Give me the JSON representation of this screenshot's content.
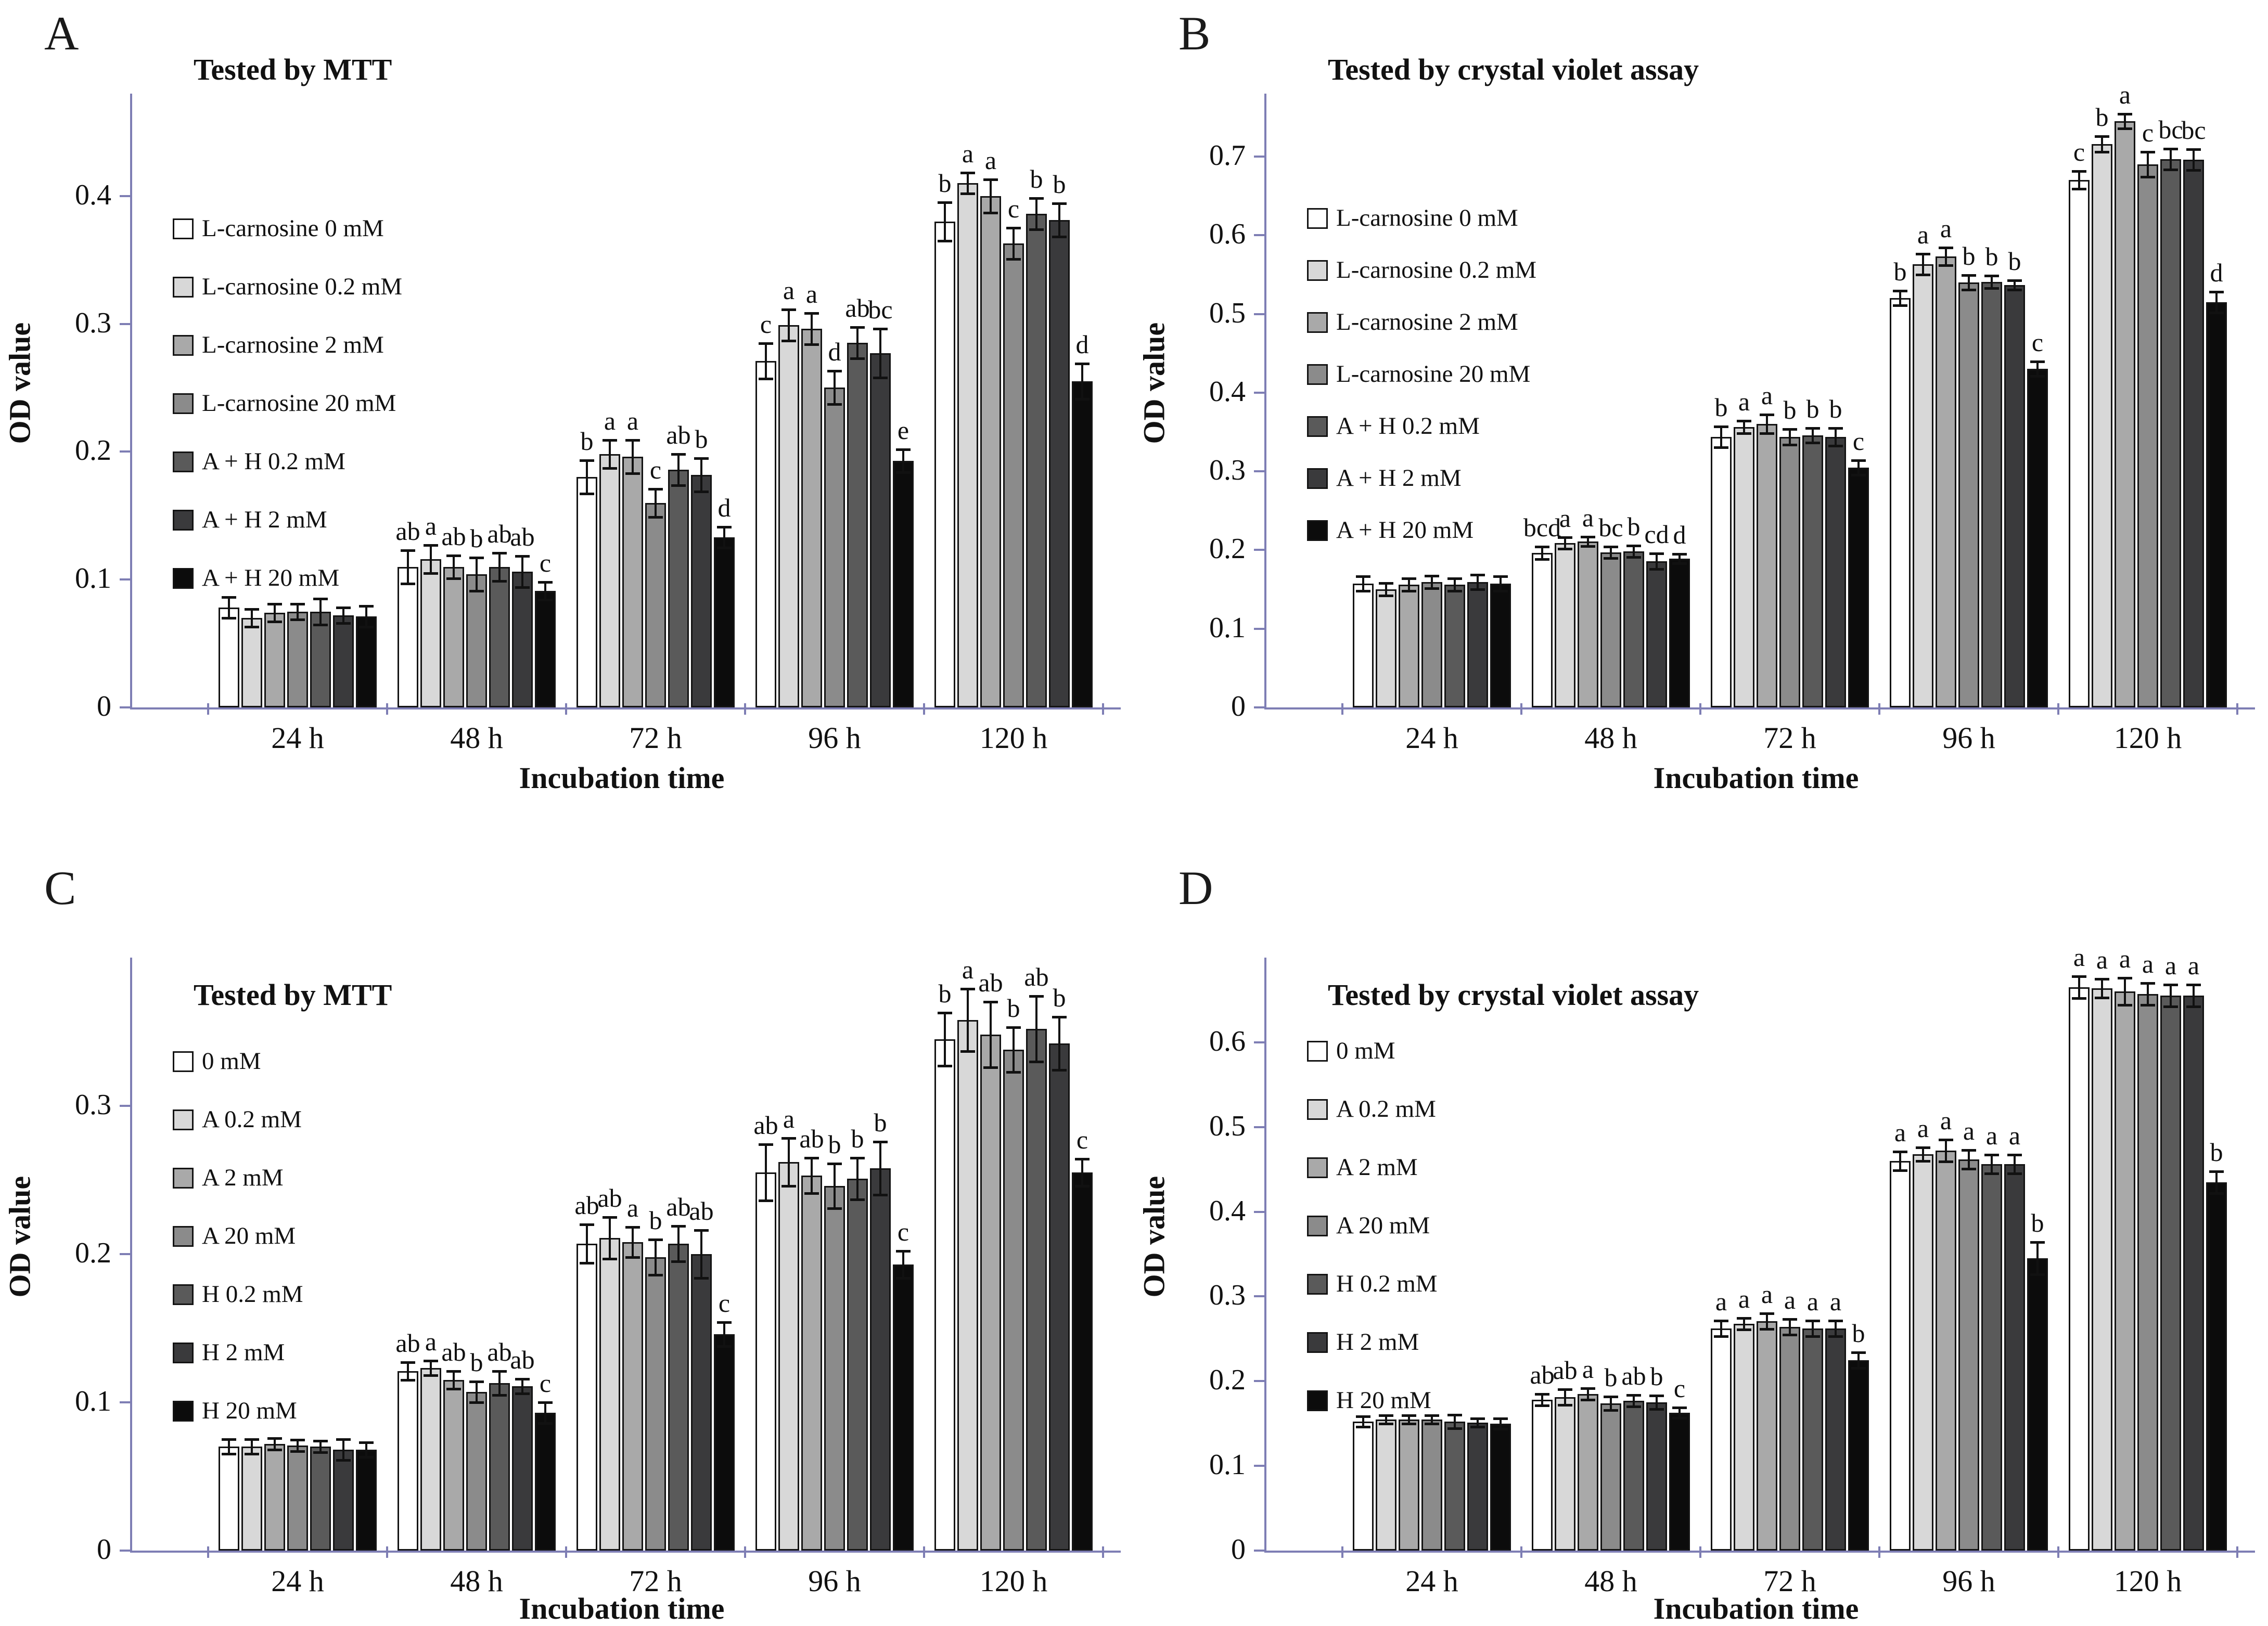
{
  "axis_color": "#7e7eb4",
  "palette": [
    "#ffffff",
    "#d8d8d8",
    "#a9a9a9",
    "#8b8b8b",
    "#5a5a5a",
    "#3a3a3c",
    "#0c0c0c"
  ],
  "chart_data": [
    {
      "panel_label": "A",
      "title": "Tested by MTT",
      "type": "bar",
      "ylabel": "OD value",
      "xlabel": "Incubation time",
      "categories": [
        "24 h",
        "48 h",
        "72 h",
        "96 h",
        "120 h"
      ],
      "ylim": [
        0,
        0.48
      ],
      "yticks": [
        0,
        0.1,
        0.2,
        0.3,
        0.4
      ],
      "legend_position": "inside-top-left",
      "series": [
        {
          "name": "L-carnosine 0 mM",
          "values": [
            0.078,
            0.11,
            0.18,
            0.271,
            0.38
          ],
          "errors": [
            0.008,
            0.013,
            0.013,
            0.014,
            0.015
          ]
        },
        {
          "name": "L-carnosine 0.2 mM",
          "values": [
            0.07,
            0.116,
            0.198,
            0.299,
            0.41
          ],
          "errors": [
            0.007,
            0.011,
            0.011,
            0.012,
            0.008
          ]
        },
        {
          "name": "L-carnosine 2 mM",
          "values": [
            0.074,
            0.11,
            0.196,
            0.296,
            0.4
          ],
          "errors": [
            0.007,
            0.009,
            0.013,
            0.012,
            0.013
          ]
        },
        {
          "name": "L-carnosine 20 mM",
          "values": [
            0.075,
            0.104,
            0.16,
            0.25,
            0.363
          ],
          "errors": [
            0.006,
            0.013,
            0.011,
            0.013,
            0.012
          ]
        },
        {
          "name": "A + H 0.2 mM",
          "values": [
            0.075,
            0.11,
            0.186,
            0.285,
            0.386
          ],
          "errors": [
            0.01,
            0.011,
            0.012,
            0.012,
            0.012
          ]
        },
        {
          "name": "A + H 2 mM",
          "values": [
            0.072,
            0.106,
            0.182,
            0.277,
            0.381
          ],
          "errors": [
            0.006,
            0.012,
            0.013,
            0.019,
            0.013
          ]
        },
        {
          "name": "A + H 20 mM",
          "values": [
            0.071,
            0.091,
            0.133,
            0.193,
            0.255
          ],
          "errors": [
            0.008,
            0.007,
            0.008,
            0.009,
            0.014
          ]
        }
      ],
      "sig_letters": [
        [
          "",
          "",
          "",
          "",
          "",
          "",
          ""
        ],
        [
          "ab",
          "a",
          "ab",
          "b",
          "ab",
          "ab",
          "c"
        ],
        [
          "b",
          "a",
          "a",
          "c",
          "ab",
          "b",
          "d"
        ],
        [
          "c",
          "a",
          "a",
          "d",
          "ab",
          "bc",
          "e"
        ],
        [
          "b",
          "a",
          "a",
          "c",
          "b",
          "b",
          "d"
        ]
      ]
    },
    {
      "panel_label": "B",
      "title": "Tested by crystal violet assay",
      "type": "bar",
      "ylabel": "OD value",
      "xlabel": "Incubation time",
      "categories": [
        "24 h",
        "48 h",
        "72 h",
        "96 h",
        "120 h"
      ],
      "ylim": [
        0,
        0.78
      ],
      "yticks": [
        0,
        0.1,
        0.2,
        0.3,
        0.4,
        0.5,
        0.6,
        0.7
      ],
      "legend_position": "inside-top-left",
      "series": [
        {
          "name": "L-carnosine 0 mM",
          "values": [
            0.157,
            0.196,
            0.344,
            0.52,
            0.67
          ],
          "errors": [
            0.009,
            0.008,
            0.013,
            0.009,
            0.011
          ]
        },
        {
          "name": "L-carnosine 0.2 mM",
          "values": [
            0.15,
            0.209,
            0.356,
            0.563,
            0.716
          ],
          "errors": [
            0.008,
            0.007,
            0.008,
            0.013,
            0.01
          ]
        },
        {
          "name": "L-carnosine 2 mM",
          "values": [
            0.156,
            0.211,
            0.36,
            0.573,
            0.745
          ],
          "errors": [
            0.008,
            0.006,
            0.012,
            0.011,
            0.009
          ]
        },
        {
          "name": "L-carnosine 20 mM",
          "values": [
            0.159,
            0.197,
            0.344,
            0.54,
            0.69
          ],
          "errors": [
            0.008,
            0.007,
            0.01,
            0.009,
            0.016
          ]
        },
        {
          "name": "A + H 0.2 mM",
          "values": [
            0.156,
            0.198,
            0.346,
            0.541,
            0.697
          ],
          "errors": [
            0.008,
            0.007,
            0.009,
            0.008,
            0.013
          ]
        },
        {
          "name": "A + H 2 mM",
          "values": [
            0.159,
            0.186,
            0.344,
            0.537,
            0.696
          ],
          "errors": [
            0.009,
            0.01,
            0.011,
            0.006,
            0.013
          ]
        },
        {
          "name": "A + H 20 mM",
          "values": [
            0.157,
            0.189,
            0.305,
            0.43,
            0.515
          ],
          "errors": [
            0.009,
            0.006,
            0.009,
            0.009,
            0.013
          ]
        }
      ],
      "sig_letters": [
        [
          "",
          "",
          "",
          "",
          "",
          "",
          ""
        ],
        [
          "bcd",
          "a",
          "a",
          "bc",
          "b",
          "cd",
          "d"
        ],
        [
          "b",
          "a",
          "a",
          "b",
          "b",
          "b",
          "c"
        ],
        [
          "b",
          "a",
          "a",
          "b",
          "b",
          "b",
          "c"
        ],
        [
          "c",
          "b",
          "a",
          "c",
          "bc",
          "bc",
          "d"
        ]
      ]
    },
    {
      "panel_label": "C",
      "title": "Tested by MTT",
      "type": "bar",
      "ylabel": "OD value",
      "xlabel": "Incubation time",
      "categories": [
        "24 h",
        "48 h",
        "72 h",
        "96 h",
        "120 h"
      ],
      "ylim": [
        0,
        0.4
      ],
      "yticks": [
        0,
        0.1,
        0.2,
        0.3
      ],
      "legend_position": "inside-top-left",
      "series": [
        {
          "name": "0 mM",
          "values": [
            0.07,
            0.121,
            0.207,
            0.255,
            0.345
          ],
          "errors": [
            0.005,
            0.006,
            0.013,
            0.019,
            0.018
          ]
        },
        {
          "name": "A 0.2 mM",
          "values": [
            0.07,
            0.123,
            0.211,
            0.262,
            0.358
          ],
          "errors": [
            0.005,
            0.005,
            0.014,
            0.016,
            0.021
          ]
        },
        {
          "name": "A 2 mM",
          "values": [
            0.072,
            0.115,
            0.208,
            0.253,
            0.348
          ],
          "errors": [
            0.004,
            0.006,
            0.01,
            0.012,
            0.022
          ]
        },
        {
          "name": "A 20 mM",
          "values": [
            0.071,
            0.107,
            0.198,
            0.246,
            0.338
          ],
          "errors": [
            0.004,
            0.007,
            0.012,
            0.015,
            0.015
          ]
        },
        {
          "name": "H 0.2 mM",
          "values": [
            0.07,
            0.113,
            0.207,
            0.251,
            0.352
          ],
          "errors": [
            0.004,
            0.008,
            0.012,
            0.014,
            0.022
          ]
        },
        {
          "name": "H 2 mM",
          "values": [
            0.068,
            0.111,
            0.2,
            0.258,
            0.342
          ],
          "errors": [
            0.007,
            0.005,
            0.016,
            0.018,
            0.018
          ]
        },
        {
          "name": "H 20 mM",
          "values": [
            0.068,
            0.093,
            0.146,
            0.193,
            0.255
          ],
          "errors": [
            0.005,
            0.007,
            0.008,
            0.009,
            0.009
          ]
        }
      ],
      "sig_letters": [
        [
          "",
          "",
          "",
          "",
          "",
          "",
          ""
        ],
        [
          "ab",
          "a",
          "ab",
          "b",
          "ab",
          "ab",
          "c"
        ],
        [
          "ab",
          "ab",
          "a",
          "b",
          "ab",
          "ab",
          "c"
        ],
        [
          "ab",
          "a",
          "ab",
          "b",
          "b",
          "b",
          "c"
        ],
        [
          "b",
          "a",
          "ab",
          "b",
          "ab",
          "b",
          "c"
        ]
      ]
    },
    {
      "panel_label": "D",
      "title": "Tested by crystal violet assay",
      "type": "bar",
      "ylabel": "OD value",
      "xlabel": "Incubation time",
      "categories": [
        "24 h",
        "48 h",
        "72 h",
        "96 h",
        "120 h"
      ],
      "ylim": [
        0,
        0.7
      ],
      "yticks": [
        0,
        0.1,
        0.2,
        0.3,
        0.4,
        0.5,
        0.6
      ],
      "legend_position": "inside-top-left",
      "series": [
        {
          "name": "0 mM",
          "values": [
            0.152,
            0.178,
            0.262,
            0.46,
            0.665
          ],
          "errors": [
            0.006,
            0.007,
            0.009,
            0.011,
            0.013
          ]
        },
        {
          "name": "A 0.2 mM",
          "values": [
            0.155,
            0.181,
            0.268,
            0.468,
            0.664
          ],
          "errors": [
            0.005,
            0.009,
            0.007,
            0.008,
            0.011
          ]
        },
        {
          "name": "A 2 mM",
          "values": [
            0.155,
            0.185,
            0.271,
            0.472,
            0.66
          ],
          "errors": [
            0.005,
            0.007,
            0.009,
            0.013,
            0.016
          ]
        },
        {
          "name": "A 20 mM",
          "values": [
            0.155,
            0.174,
            0.264,
            0.462,
            0.657
          ],
          "errors": [
            0.005,
            0.008,
            0.009,
            0.011,
            0.013
          ]
        },
        {
          "name": "H 0.2 mM",
          "values": [
            0.152,
            0.177,
            0.262,
            0.456,
            0.655
          ],
          "errors": [
            0.008,
            0.007,
            0.009,
            0.011,
            0.013
          ]
        },
        {
          "name": "H 2 mM",
          "values": [
            0.151,
            0.175,
            0.262,
            0.456,
            0.655
          ],
          "errors": [
            0.004,
            0.008,
            0.009,
            0.011,
            0.013
          ]
        },
        {
          "name": "H 20 mM",
          "values": [
            0.15,
            0.163,
            0.225,
            0.345,
            0.435
          ],
          "errors": [
            0.006,
            0.006,
            0.009,
            0.019,
            0.013
          ]
        }
      ],
      "sig_letters": [
        [
          "",
          "",
          "",
          "",
          "",
          "",
          ""
        ],
        [
          "ab",
          "ab",
          "a",
          "b",
          "ab",
          "b",
          "c"
        ],
        [
          "a",
          "a",
          "a",
          "a",
          "a",
          "a",
          "b"
        ],
        [
          "a",
          "a",
          "a",
          "a",
          "a",
          "a",
          "b"
        ],
        [
          "a",
          "a",
          "a",
          "a",
          "a",
          "a",
          "b"
        ]
      ]
    }
  ]
}
